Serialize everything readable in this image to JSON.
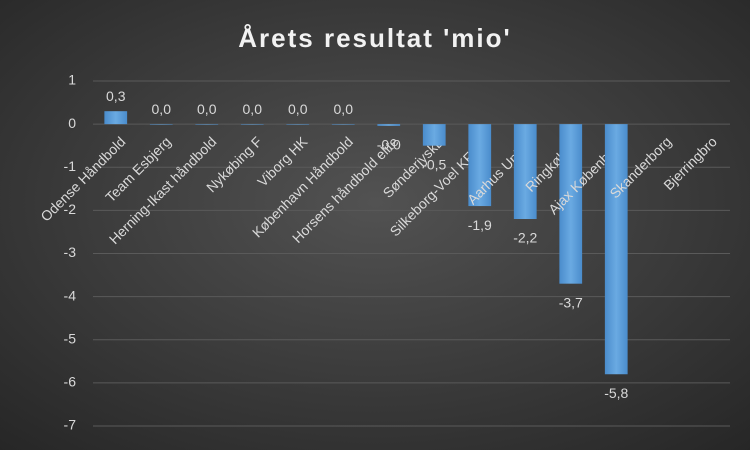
{
  "chart_data": {
    "type": "bar",
    "title": "Årets resultat 'mio'",
    "categories": [
      "Odense Håndbold",
      "Team Esbjerg",
      "Herning-Ikast håndbold",
      "Nykøbing F",
      "Viborg HK",
      "København Håndbold",
      "Horsens håndbold elite",
      "SønderjyskE",
      "Silkeborg-Voel KFUM",
      "Aarhus United",
      "Ringkøbing",
      "Ajax København",
      "Skanderborg",
      "Bjerringbro"
    ],
    "values": [
      0.3,
      0.0,
      0.0,
      0.0,
      0.0,
      0.0,
      -0.04,
      -0.5,
      -1.9,
      -2.2,
      -3.7,
      -5.8,
      null,
      null
    ],
    "value_labels": [
      "0,3",
      "0,0",
      "0,0",
      "0,0",
      "0,0",
      "0,0",
      "-0,0",
      "-0,5",
      "-1,9",
      "-2,2",
      "-3,7",
      "-5,8",
      null,
      null
    ],
    "color": "#5b9bd5",
    "ylim": [
      -7,
      1
    ],
    "yticks": [
      1,
      0,
      -1,
      -2,
      -3,
      -4,
      -5,
      -6,
      -7
    ],
    "grid": true
  }
}
